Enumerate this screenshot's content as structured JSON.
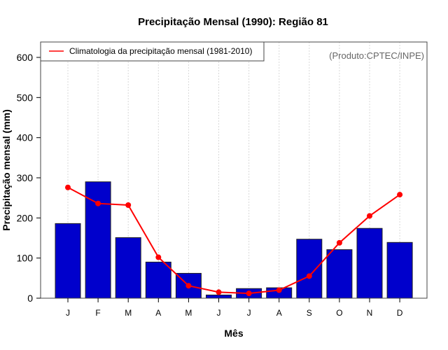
{
  "chart_data": {
    "type": "bar",
    "title": "Precipitação Mensal (1990): Região 81",
    "xlabel": "Mês",
    "ylabel": "Precipitação mensal (mm)",
    "ylim": [
      0,
      640
    ],
    "yticks": [
      0,
      100,
      200,
      300,
      400,
      500,
      600
    ],
    "categories": [
      "J",
      "F",
      "M",
      "A",
      "M",
      "J",
      "J",
      "A",
      "S",
      "O",
      "N",
      "D"
    ],
    "grid": "vertical dotted at each month",
    "series": [
      {
        "name": "Precipitação mensal (1990)",
        "kind": "bar",
        "color": "#0000CC",
        "values": [
          186,
          290,
          151,
          90,
          62,
          8,
          24,
          26,
          147,
          121,
          174,
          139
        ]
      },
      {
        "name": "Climatologia da precipitação mensal (1981-2010)",
        "kind": "line",
        "color": "#FF0000",
        "values": [
          276,
          236,
          232,
          102,
          31,
          15,
          12,
          20,
          55,
          138,
          205,
          258
        ]
      }
    ],
    "legend": {
      "position": "top-left",
      "entries": [
        "Climatologia da precipitação mensal (1981-2010)"
      ]
    },
    "annotation": "(Produto:CPTEC/INPE)"
  }
}
